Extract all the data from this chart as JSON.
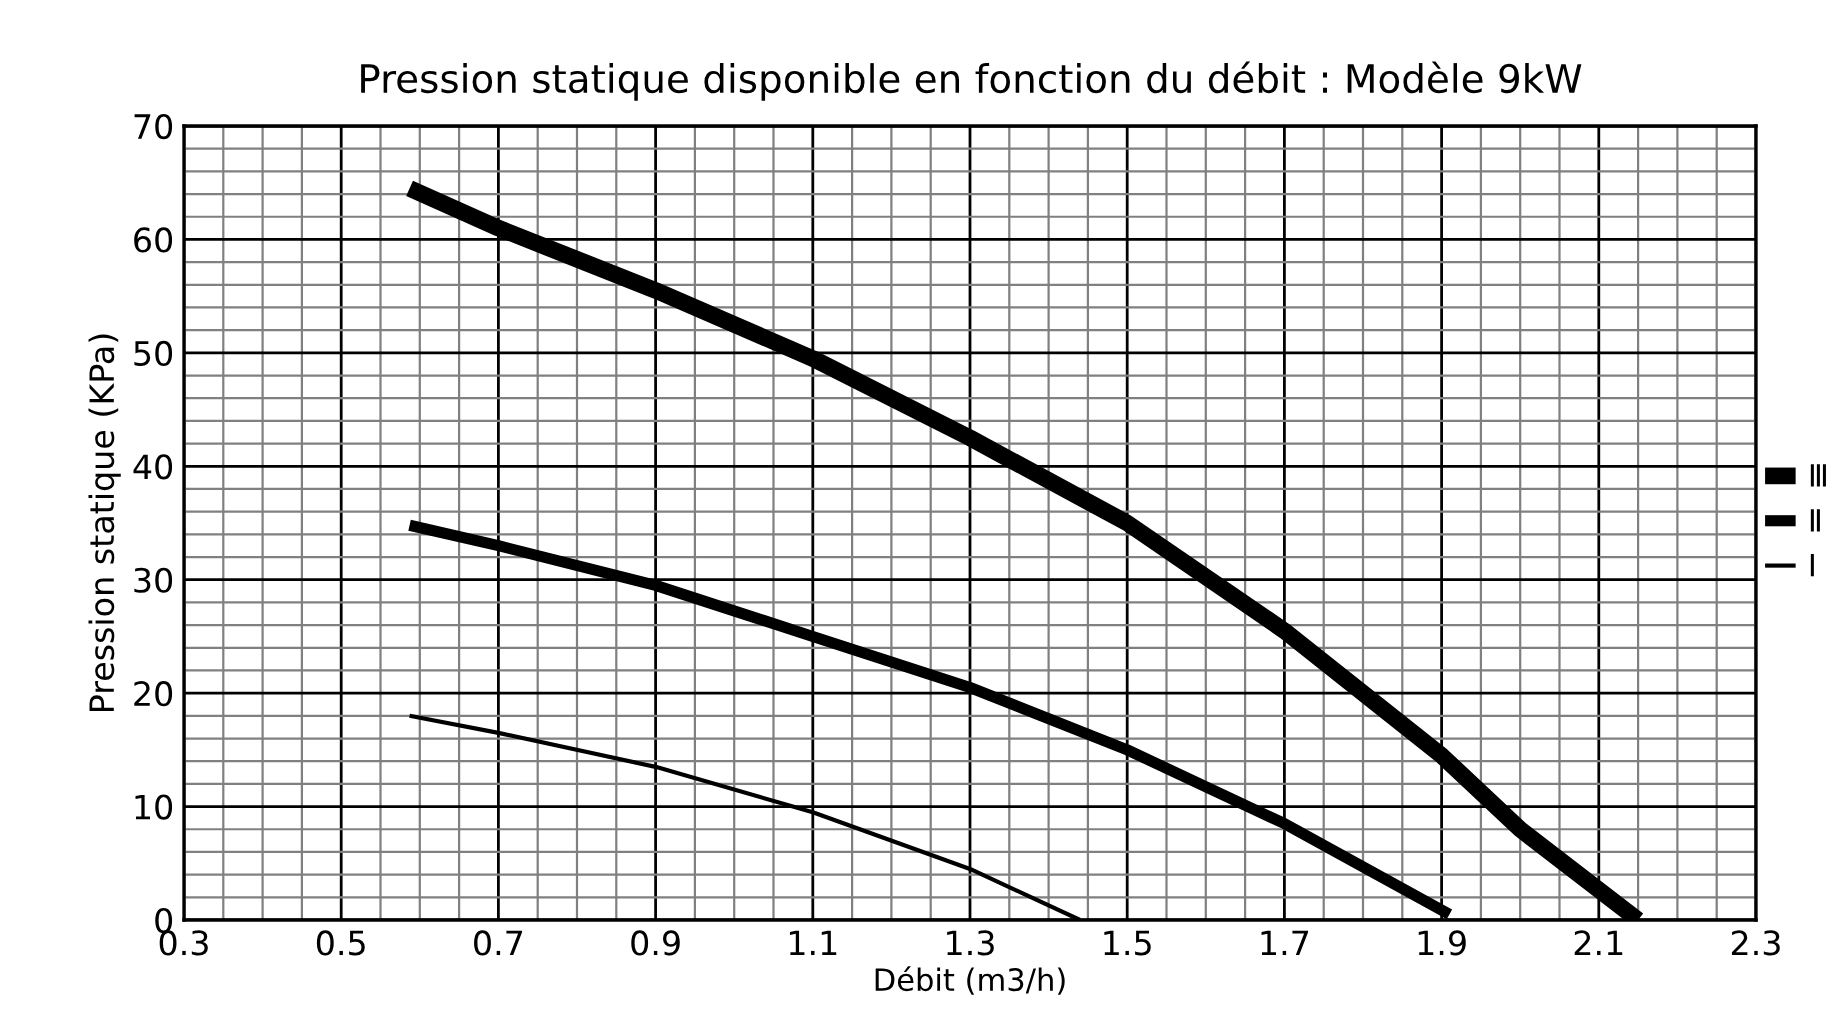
{
  "chart_data": {
    "type": "line",
    "title": "Pression statique disponible en fonction du débit : Modèle 9kW",
    "xlabel": "Débit (m3/h)",
    "ylabel": "Pression statique (KPa)",
    "series": [
      {
        "name": "Ⅲ",
        "color": "#000000",
        "x": [
          0.587,
          0.7,
          0.9,
          1.1,
          1.3,
          1.5,
          1.7,
          1.9,
          2.0,
          2.15
        ],
        "values": [
          64.5,
          61,
          55.5,
          49.5,
          42.5,
          35,
          25.5,
          14.5,
          8,
          0
        ]
      },
      {
        "name": "Ⅱ",
        "color": "#000000",
        "x": [
          0.587,
          0.7,
          0.9,
          1.1,
          1.3,
          1.5,
          1.7,
          1.91
        ],
        "values": [
          34.8,
          33,
          29.5,
          25,
          20.5,
          15,
          8.5,
          0.5
        ]
      },
      {
        "name": "Ⅰ",
        "color": "#000000",
        "x": [
          0.587,
          0.7,
          0.9,
          1.1,
          1.3,
          1.44
        ],
        "values": [
          18,
          16.5,
          13.5,
          9.5,
          4.5,
          0
        ]
      }
    ],
    "xlim": [
      0.3,
      2.3
    ],
    "ylim": [
      0,
      70
    ],
    "xticks": [
      0.3,
      {
        "value": 0.35,
        "label": null
      },
      {
        "value": 0.4,
        "label": null
      },
      {
        "value": 0.45,
        "label": null
      },
      0.5,
      {
        "value": 0.55,
        "label": null
      },
      {
        "value": 0.6,
        "label": null
      },
      {
        "value": 0.65,
        "label": null
      },
      0.7,
      {
        "value": 0.75,
        "label": null
      },
      {
        "value": 0.8,
        "label": null
      },
      {
        "value": 0.85,
        "label": null
      },
      0.9,
      {
        "value": 0.95,
        "label": null
      },
      {
        "value": 1.0,
        "label": null
      },
      {
        "value": 1.05,
        "label": null
      },
      1.1,
      {
        "value": 1.15,
        "label": null
      },
      {
        "value": 1.2,
        "label": null
      },
      {
        "value": 1.25,
        "label": null
      },
      1.3,
      {
        "value": 1.35,
        "label": null
      },
      {
        "value": 1.4,
        "label": null
      },
      {
        "value": 1.45,
        "label": null
      },
      1.5,
      {
        "value": 1.55,
        "label": null
      },
      {
        "value": 1.6,
        "label": null
      },
      {
        "value": 1.65,
        "label": null
      },
      1.7,
      {
        "value": 1.75,
        "label": null
      },
      {
        "value": 1.8,
        "label": null
      },
      {
        "value": 1.85,
        "label": null
      },
      1.9,
      {
        "value": 1.95,
        "label": null
      },
      {
        "value": 2.0,
        "label": null
      },
      {
        "value": 2.05,
        "label": null
      },
      2.1,
      {
        "value": 2.15,
        "label": null
      },
      {
        "value": 2.2,
        "label": null
      },
      {
        "value": 2.25,
        "label": null
      },
      2.3
    ],
    "yticks": [
      0,
      {
        "value": 2,
        "label": null
      },
      {
        "value": 4,
        "label": null
      },
      {
        "value": 6,
        "label": null
      },
      {
        "value": 8,
        "label": null
      },
      10,
      {
        "value": 12,
        "label": null
      },
      {
        "value": 14,
        "label": null
      },
      {
        "value": 16,
        "label": null
      },
      {
        "value": 18,
        "label": null
      },
      20,
      {
        "value": 22,
        "label": null
      },
      {
        "value": 24,
        "label": null
      },
      {
        "value": 26,
        "label": null
      },
      {
        "value": 28,
        "label": null
      },
      30,
      {
        "value": 32,
        "label": null
      },
      {
        "value": 34,
        "label": null
      },
      {
        "value": 36,
        "label": null
      },
      {
        "value": 38,
        "label": null
      },
      40,
      {
        "value": 42,
        "label": null
      },
      {
        "value": 44,
        "label": null
      },
      {
        "value": 46,
        "label": null
      },
      {
        "value": 48,
        "label": null
      },
      50,
      {
        "value": 52,
        "label": null
      },
      {
        "value": 54,
        "label": null
      },
      {
        "value": 56,
        "label": null
      },
      {
        "value": 58,
        "label": null
      },
      60,
      {
        "value": 62,
        "label": null
      },
      {
        "value": 64,
        "label": null
      },
      {
        "value": 66,
        "label": null
      },
      {
        "value": 68,
        "label": null
      },
      70
    ],
    "grid": true,
    "legend": "right",
    "marker": "none",
    "line_style": "solid"
  }
}
